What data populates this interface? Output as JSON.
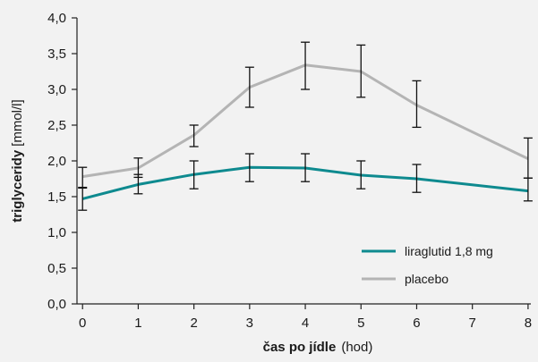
{
  "chart_data": {
    "type": "line",
    "x": [
      0,
      1,
      2,
      3,
      4,
      5,
      6,
      8
    ],
    "xticks": [
      0,
      1,
      2,
      3,
      4,
      5,
      6,
      7,
      8
    ],
    "yticks": [
      0.0,
      0.5,
      1.0,
      1.5,
      2.0,
      2.5,
      3.0,
      3.5,
      4.0
    ],
    "ytick_labels": [
      "0,0",
      "0,5",
      "1,0",
      "1,5",
      "2,0",
      "2,5",
      "3,0",
      "3,5",
      "4,0"
    ],
    "xlim": [
      -0.1,
      8.05
    ],
    "ylim": [
      0,
      4.0
    ],
    "xlabel_bold": "čas po jídle",
    "xlabel_unit": "(hod)",
    "ylabel_bold": "triglyceridy",
    "ylabel_unit": "[mmol/l]",
    "grid": false,
    "legend_position": "bottom-right",
    "series": [
      {
        "name": "liraglutid 1,8 mg",
        "color": "#0e8a8f",
        "values": [
          1.47,
          1.67,
          1.81,
          1.91,
          1.9,
          1.8,
          1.75,
          1.58
        ],
        "error_low": [
          1.31,
          1.54,
          1.61,
          1.71,
          1.71,
          1.61,
          1.56,
          1.44
        ],
        "error_high": [
          1.62,
          1.81,
          2.0,
          2.1,
          2.1,
          2.0,
          1.95,
          1.76
        ]
      },
      {
        "name": "placebo",
        "color": "#b4b4b4",
        "values": [
          1.78,
          1.9,
          2.36,
          3.03,
          3.34,
          3.25,
          2.78,
          2.03
        ],
        "error_low": [
          1.63,
          1.77,
          2.2,
          2.75,
          3.0,
          2.89,
          2.47,
          1.76
        ],
        "error_high": [
          1.91,
          2.04,
          2.5,
          3.31,
          3.66,
          3.62,
          3.12,
          2.32
        ]
      }
    ]
  }
}
